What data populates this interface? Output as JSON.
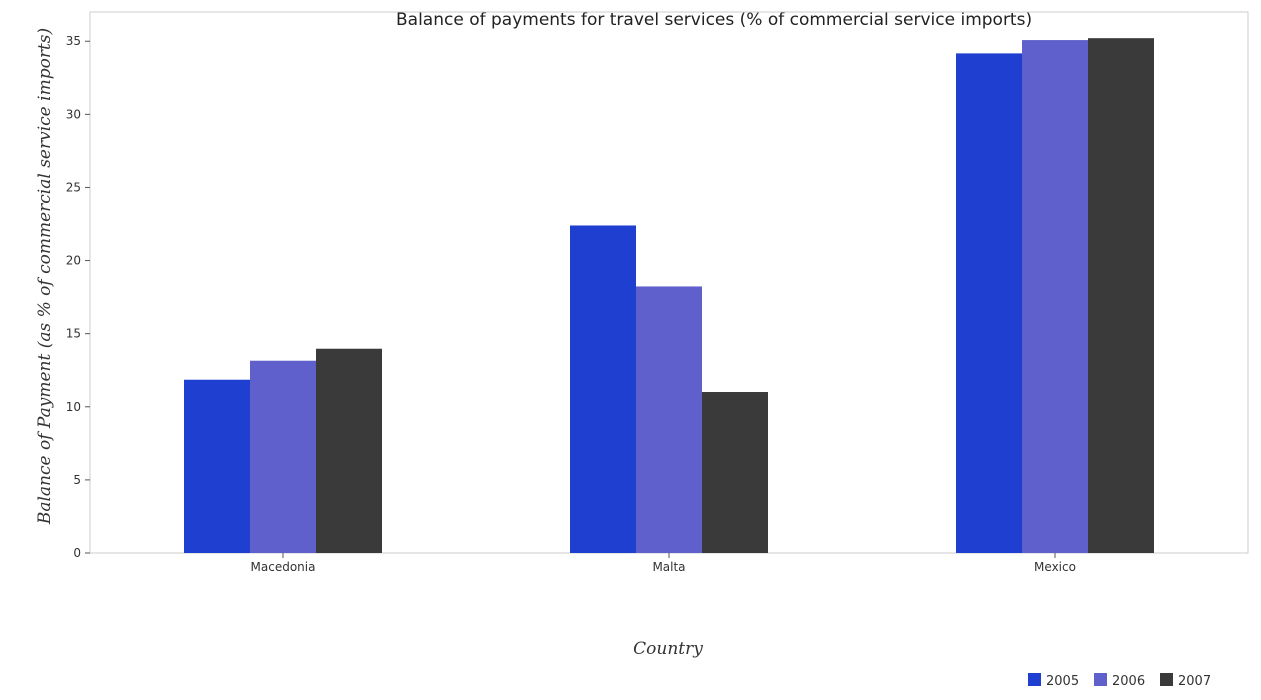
{
  "chart_data": {
    "type": "bar",
    "title": "Balance of payments for travel services (% of commercial service imports)",
    "xlabel": "Country",
    "ylabel": "Balance of Payment (as % of commercial service imports)",
    "categories": [
      "Macedonia",
      "Malta",
      "Mexico"
    ],
    "series": [
      {
        "name": "2005",
        "color": "#1f3fd0",
        "values": [
          11.85,
          22.4,
          34.17
        ]
      },
      {
        "name": "2006",
        "color": "#6060cc",
        "values": [
          13.15,
          18.23,
          35.08
        ]
      },
      {
        "name": "2007",
        "color": "#3a3a3a",
        "values": [
          13.97,
          11.01,
          35.21
        ]
      }
    ],
    "ylim": [
      0,
      37.0
    ],
    "yticks": [
      0,
      5,
      10,
      15,
      20,
      25,
      30,
      35
    ],
    "grid": false,
    "legend_position": "bottom-right"
  }
}
